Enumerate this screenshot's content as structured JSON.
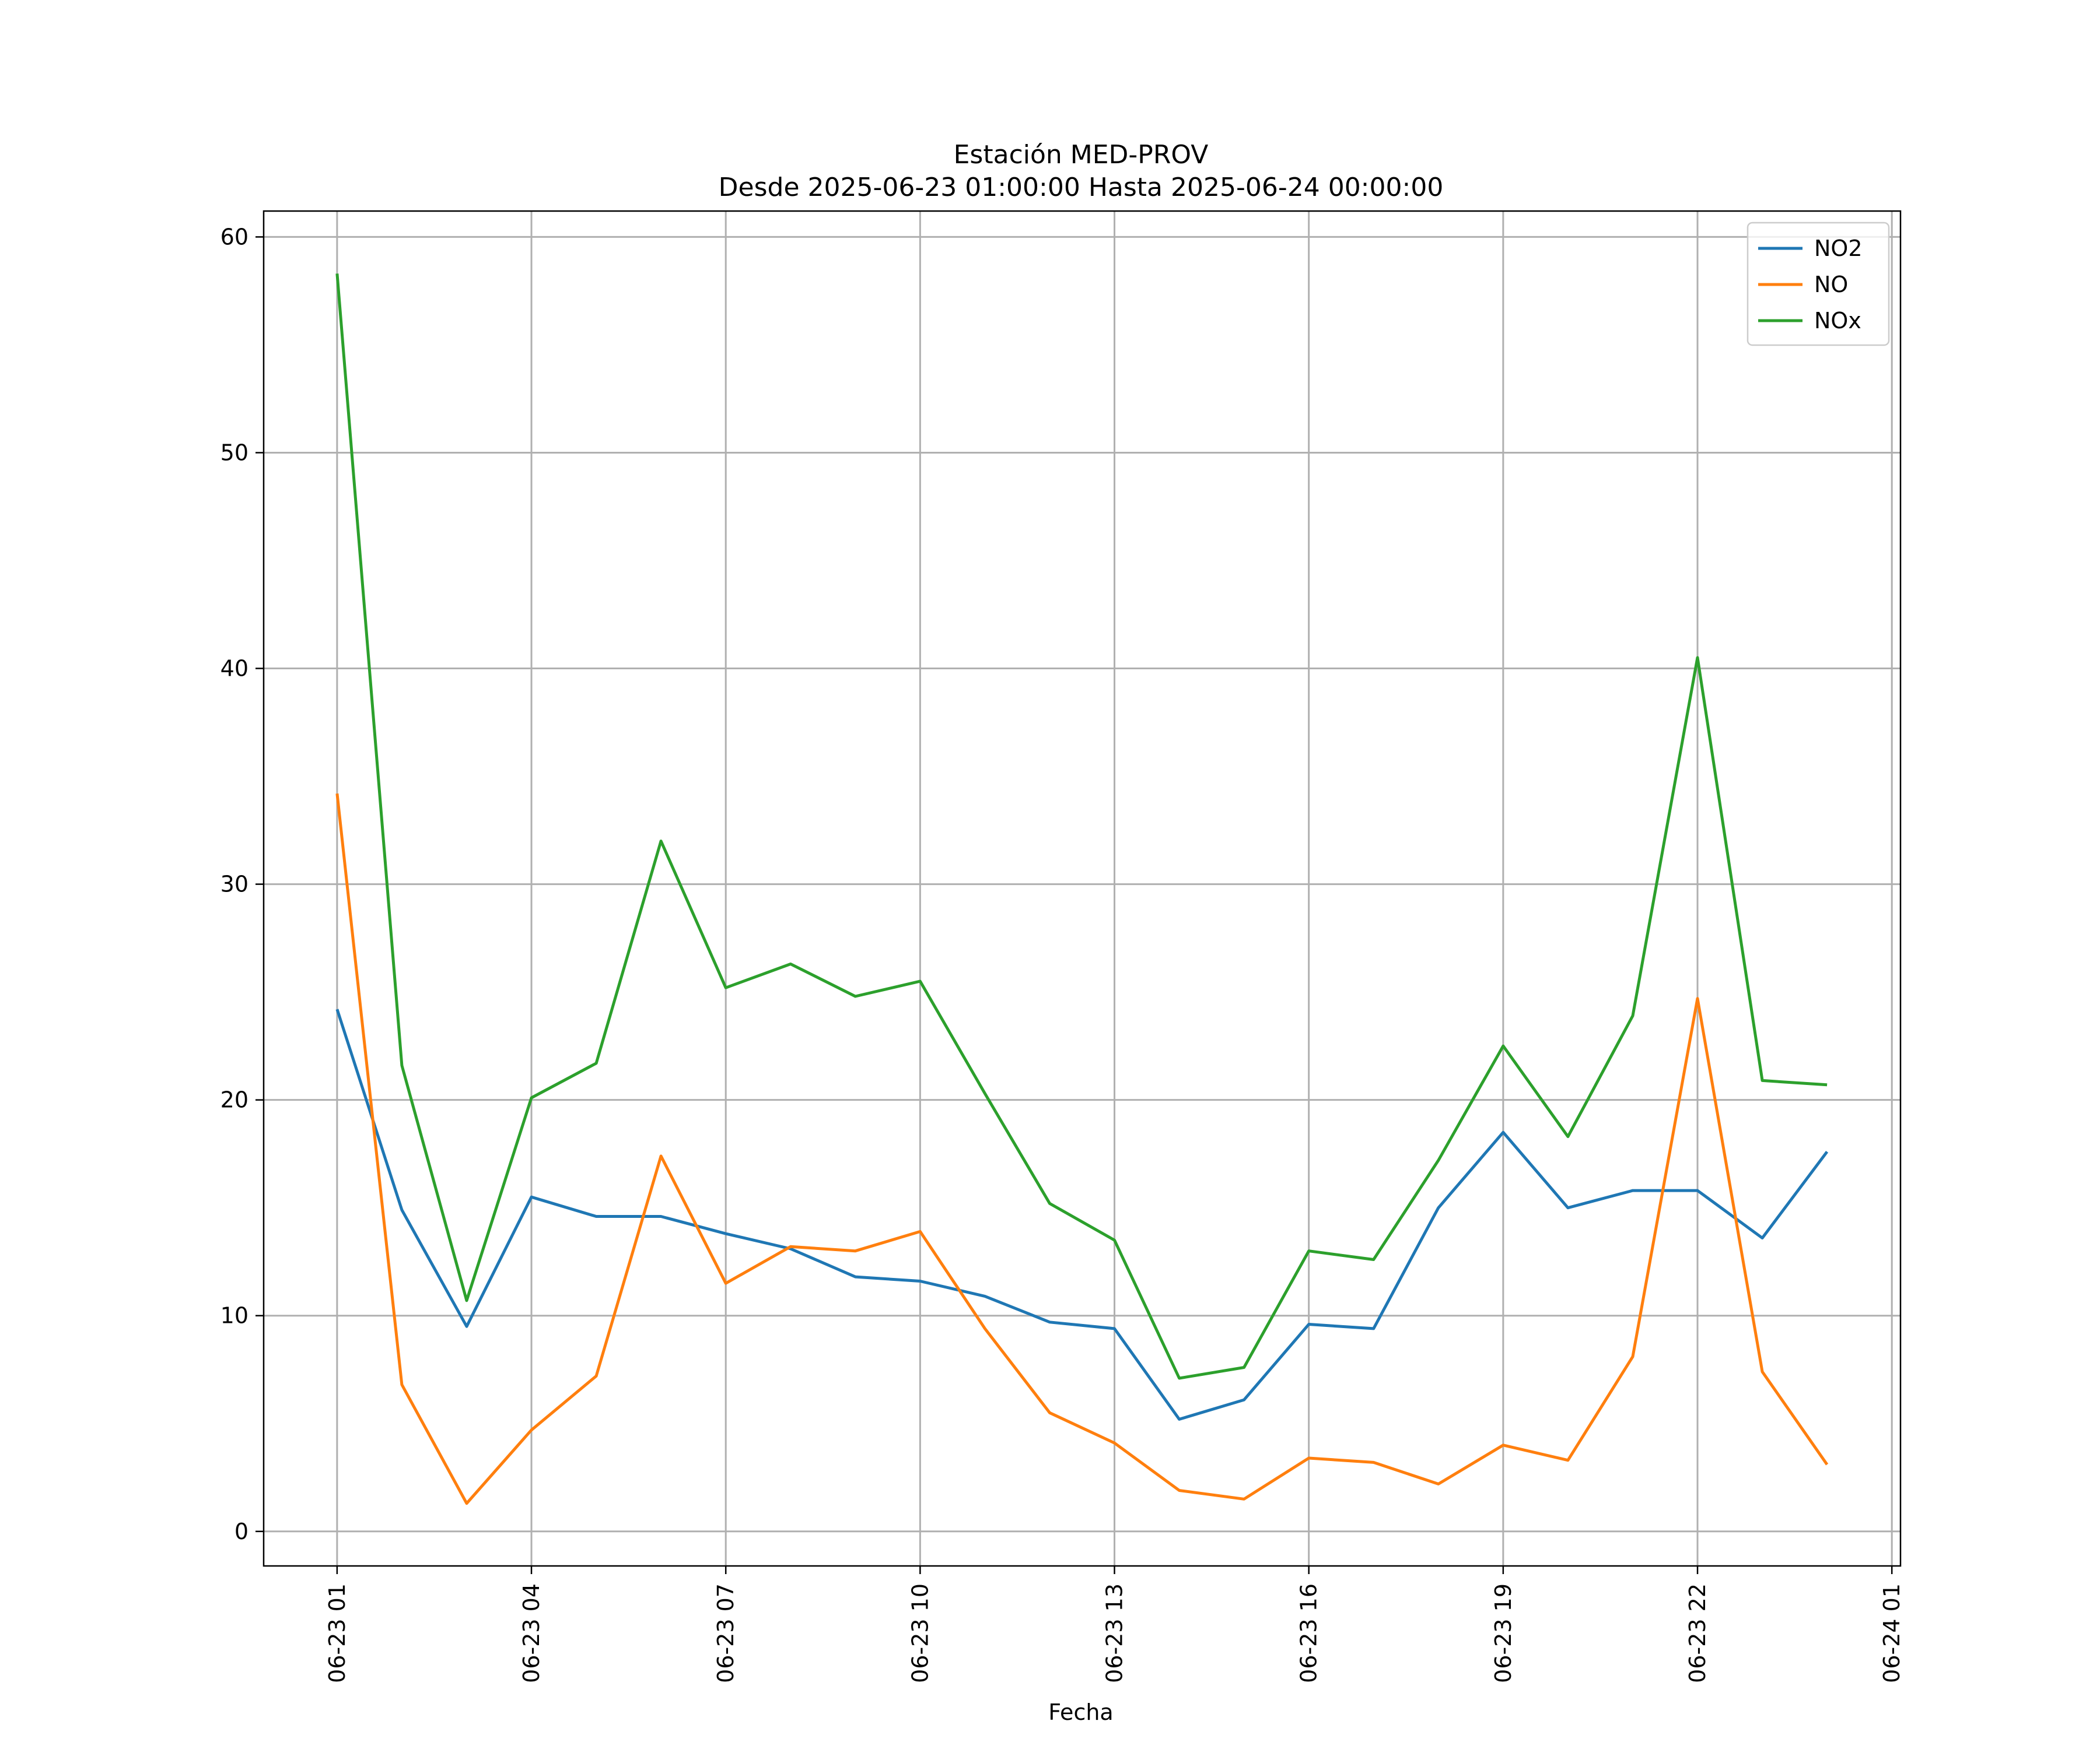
{
  "chart_data": {
    "type": "line",
    "title": "Estación MED-PROV",
    "subtitle": "Desde 2025-06-23 01:00:00 Hasta 2025-06-24 00:00:00",
    "xlabel": "Fecha",
    "ylabel": "",
    "x": [
      "2025-06-23 01:00",
      "2025-06-23 02:00",
      "2025-06-23 03:00",
      "2025-06-23 04:00",
      "2025-06-23 05:00",
      "2025-06-23 06:00",
      "2025-06-23 07:00",
      "2025-06-23 08:00",
      "2025-06-23 09:00",
      "2025-06-23 10:00",
      "2025-06-23 11:00",
      "2025-06-23 12:00",
      "2025-06-23 13:00",
      "2025-06-23 14:00",
      "2025-06-23 15:00",
      "2025-06-23 16:00",
      "2025-06-23 17:00",
      "2025-06-23 18:00",
      "2025-06-23 19:00",
      "2025-06-23 20:00",
      "2025-06-23 21:00",
      "2025-06-23 22:00",
      "2025-06-23 23:00",
      "2025-06-24 00:00"
    ],
    "xlim": [
      "2025-06-22 23:52",
      "2025-06-24 01:08"
    ],
    "xticks": [
      "2025-06-23 01:00",
      "2025-06-23 04:00",
      "2025-06-23 07:00",
      "2025-06-23 10:00",
      "2025-06-23 13:00",
      "2025-06-23 16:00",
      "2025-06-23 19:00",
      "2025-06-23 22:00",
      "2025-06-24 01:00"
    ],
    "xtick_labels": [
      "06-23 01",
      "06-23 04",
      "06-23 07",
      "06-23 10",
      "06-23 13",
      "06-23 16",
      "06-23 19",
      "06-23 22",
      "06-24 01"
    ],
    "ylim": [
      -1.6,
      61.2
    ],
    "yticks": [
      0,
      10,
      20,
      30,
      40,
      50,
      60
    ],
    "ytick_labels": [
      "0",
      "10",
      "20",
      "30",
      "40",
      "50",
      "60"
    ],
    "grid": true,
    "legend_position": "top-right",
    "series": [
      {
        "name": "NO2",
        "color": "#1f77b4",
        "values": [
          24.2,
          14.9,
          9.5,
          15.5,
          14.6,
          14.6,
          13.8,
          13.1,
          11.8,
          11.6,
          10.9,
          9.7,
          9.4,
          5.2,
          6.1,
          9.6,
          9.4,
          15.0,
          18.5,
          15.0,
          15.8,
          15.8,
          13.6,
          17.6
        ]
      },
      {
        "name": "NO",
        "color": "#ff7f0e",
        "values": [
          34.2,
          6.8,
          1.3,
          4.7,
          7.2,
          17.4,
          11.5,
          13.2,
          13.0,
          13.9,
          9.4,
          5.5,
          4.1,
          1.9,
          1.5,
          3.4,
          3.2,
          2.2,
          4.0,
          3.3,
          8.1,
          24.7,
          7.4,
          3.1
        ]
      },
      {
        "name": "NOx",
        "color": "#2ca02c",
        "values": [
          58.3,
          21.6,
          10.7,
          20.1,
          21.7,
          32.0,
          25.2,
          26.3,
          24.8,
          25.5,
          20.3,
          15.2,
          13.5,
          7.1,
          7.6,
          13.0,
          12.6,
          17.2,
          22.5,
          18.3,
          23.9,
          40.5,
          20.9,
          20.7
        ]
      }
    ]
  }
}
